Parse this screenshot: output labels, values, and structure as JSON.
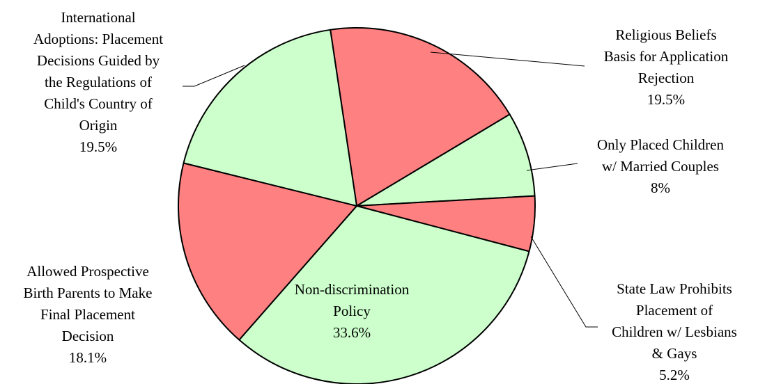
{
  "chart_data": {
    "type": "pie",
    "title": "",
    "colors": {
      "light_green": "#ccffcc",
      "salmon": "#ff8080",
      "outline": "#000000"
    },
    "slices": [
      {
        "label_lines": [
          "Religious Beliefs",
          "Basis for Application",
          "Rejection"
        ],
        "value": 19.5,
        "value_text": "19.5%",
        "color": "#ff8080"
      },
      {
        "label_lines": [
          "Only Placed Children",
          "w/ Married Couples"
        ],
        "value": 8,
        "value_text": "8%",
        "color": "#ccffcc"
      },
      {
        "label_lines": [
          "State Law Prohibits",
          "Placement of",
          "Children w/ Lesbians",
          "& Gays"
        ],
        "value": 5.2,
        "value_text": "5.2%",
        "color": "#ff8080"
      },
      {
        "label_lines": [
          "Non-discrimination",
          "Policy"
        ],
        "value": 33.6,
        "value_text": "33.6%",
        "color": "#ccffcc"
      },
      {
        "label_lines": [
          "Allowed Prospective",
          "Birth Parents to Make",
          "Final Placement",
          "Decision"
        ],
        "value": 18.1,
        "value_text": "18.1%",
        "color": "#ff8080"
      },
      {
        "label_lines": [
          "International",
          "Adoptions: Placement",
          "Decisions Guided by",
          "the Regulations of",
          "Child's Country of",
          "Origin"
        ],
        "value": 19.5,
        "value_text": "19.5%",
        "color": "#ccffcc"
      }
    ]
  }
}
